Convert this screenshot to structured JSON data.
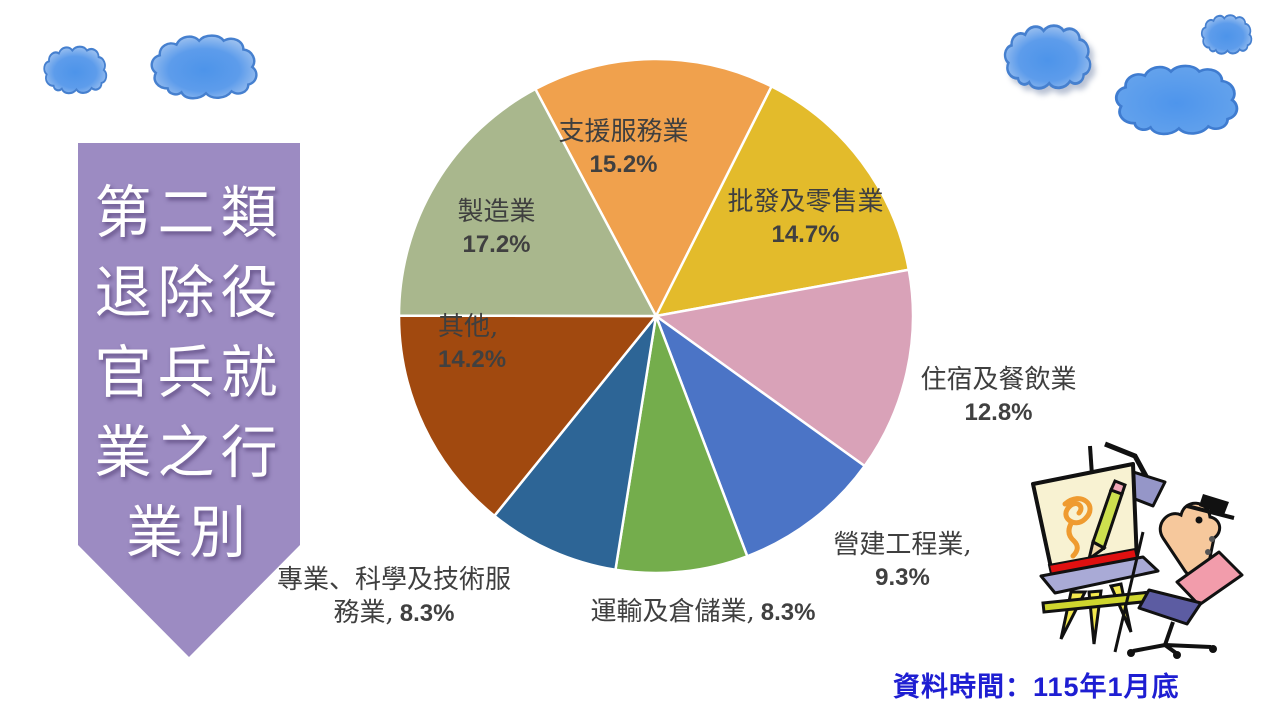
{
  "banner": {
    "lines": [
      "第二類",
      "退除役",
      "官兵就",
      "業之行",
      "業別"
    ],
    "fill": "#9c8bc2"
  },
  "footnote": {
    "text": "資料時間：115年1月底",
    "color": "#1e1ed2"
  },
  "chart_data": {
    "type": "pie",
    "title": "第二類退除役官兵就業之行業別",
    "start_angle_deg": -28,
    "direction": "clockwise",
    "slice_border_color": "#ffffff",
    "legend_position": "none",
    "slices": [
      {
        "name": "支援服務業",
        "value": 15.2,
        "color": "#f0a14d",
        "label": {
          "name_text": "支援服務業",
          "pct_text": "15.2%",
          "placement": "inside"
        }
      },
      {
        "name": "批發及零售業",
        "value": 14.7,
        "color": "#e3bb2b",
        "label": {
          "name_text": "批發及零售業",
          "pct_text": "14.7%",
          "placement": "inside"
        }
      },
      {
        "name": "住宿及餐飲業",
        "value": 12.8,
        "color": "#d9a2b8",
        "label": {
          "name_text": "住宿及餐飲業",
          "pct_text": "12.8%",
          "placement": "outside"
        }
      },
      {
        "name": "營建工程業",
        "value": 9.3,
        "color": "#4b74c6",
        "label": {
          "name_text": "營建工程業,",
          "pct_text": "9.3%",
          "placement": "outside"
        }
      },
      {
        "name": "運輸及倉儲業",
        "value": 8.3,
        "color": "#74ad4c",
        "label": {
          "name_text": "運輸及倉儲業,",
          "pct_text": "8.3%",
          "placement": "outside"
        }
      },
      {
        "name": "專業、科學及技術服務業",
        "value": 8.3,
        "color": "#2d6596",
        "label": {
          "name_line1": "專業、科學及技術服",
          "name_line2": "務業,",
          "pct_text": "8.3%",
          "placement": "outside"
        }
      },
      {
        "name": "其他",
        "value": 14.2,
        "color": "#a1490f",
        "label": {
          "name_text": "其他,",
          "pct_text": "14.2%",
          "placement": "inside"
        }
      },
      {
        "name": "製造業",
        "value": 17.2,
        "color": "#a9b78d",
        "label": {
          "name_text": "製造業",
          "pct_text": "17.2%",
          "placement": "inside"
        }
      }
    ]
  },
  "decorations": {
    "clouds_left": [
      "cloud-icon",
      "cloud-icon"
    ],
    "clouds_right": [
      "cloud-icon",
      "cloud-icon",
      "cloud-icon"
    ],
    "artist": "artist-at-easel-clipart"
  }
}
